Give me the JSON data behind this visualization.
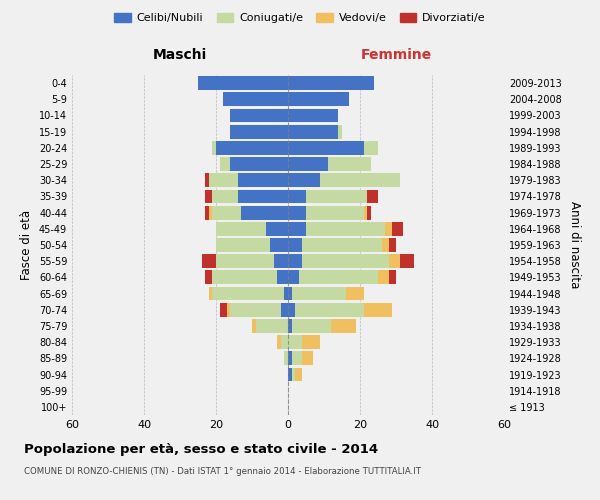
{
  "age_groups": [
    "100+",
    "95-99",
    "90-94",
    "85-89",
    "80-84",
    "75-79",
    "70-74",
    "65-69",
    "60-64",
    "55-59",
    "50-54",
    "45-49",
    "40-44",
    "35-39",
    "30-34",
    "25-29",
    "20-24",
    "15-19",
    "10-14",
    "5-9",
    "0-4"
  ],
  "birth_years": [
    "≤ 1913",
    "1914-1918",
    "1919-1923",
    "1924-1928",
    "1929-1933",
    "1934-1938",
    "1939-1943",
    "1944-1948",
    "1949-1953",
    "1954-1958",
    "1959-1963",
    "1964-1968",
    "1969-1973",
    "1974-1978",
    "1979-1983",
    "1984-1988",
    "1989-1993",
    "1994-1998",
    "1999-2003",
    "2004-2008",
    "2009-2013"
  ],
  "male": {
    "celibi": [
      0,
      0,
      0,
      0,
      0,
      0,
      2,
      1,
      3,
      4,
      5,
      6,
      13,
      14,
      14,
      16,
      20,
      16,
      16,
      18,
      25
    ],
    "coniugati": [
      0,
      0,
      0,
      1,
      2,
      9,
      14,
      20,
      18,
      16,
      15,
      14,
      8,
      7,
      8,
      3,
      1,
      0,
      0,
      0,
      0
    ],
    "vedovi": [
      0,
      0,
      0,
      0,
      1,
      1,
      1,
      1,
      0,
      0,
      0,
      0,
      1,
      0,
      0,
      0,
      0,
      0,
      0,
      0,
      0
    ],
    "divorziati": [
      0,
      0,
      0,
      0,
      0,
      0,
      2,
      0,
      2,
      4,
      0,
      0,
      1,
      2,
      1,
      0,
      0,
      0,
      0,
      0,
      0
    ]
  },
  "female": {
    "nubili": [
      0,
      0,
      1,
      1,
      0,
      1,
      2,
      1,
      3,
      4,
      4,
      5,
      5,
      5,
      9,
      11,
      21,
      14,
      14,
      17,
      24
    ],
    "coniugate": [
      0,
      0,
      1,
      3,
      4,
      11,
      19,
      15,
      22,
      24,
      22,
      22,
      16,
      17,
      22,
      12,
      4,
      1,
      0,
      0,
      0
    ],
    "vedove": [
      0,
      0,
      2,
      3,
      5,
      7,
      8,
      5,
      3,
      3,
      2,
      2,
      1,
      0,
      0,
      0,
      0,
      0,
      0,
      0,
      0
    ],
    "divorziate": [
      0,
      0,
      0,
      0,
      0,
      0,
      0,
      0,
      2,
      4,
      2,
      3,
      1,
      3,
      0,
      0,
      0,
      0,
      0,
      0,
      0
    ]
  },
  "colors": {
    "celibi": "#4472c4",
    "coniugati": "#c5d9a3",
    "vedovi": "#f0c060",
    "divorziati": "#c0312b"
  },
  "xlim": 60,
  "title": "Popolazione per età, sesso e stato civile - 2014",
  "subtitle": "COMUNE DI RONZO-CHIENIS (TN) - Dati ISTAT 1° gennaio 2014 - Elaborazione TUTTITALIA.IT",
  "xlabel_left": "Maschi",
  "xlabel_right": "Femmine",
  "ylabel_left": "Fasce di età",
  "ylabel_right": "Anni di nascita",
  "legend_labels": [
    "Celibi/Nubili",
    "Coniugati/e",
    "Vedovi/e",
    "Divorziati/e"
  ],
  "background_color": "#f0f0f0"
}
